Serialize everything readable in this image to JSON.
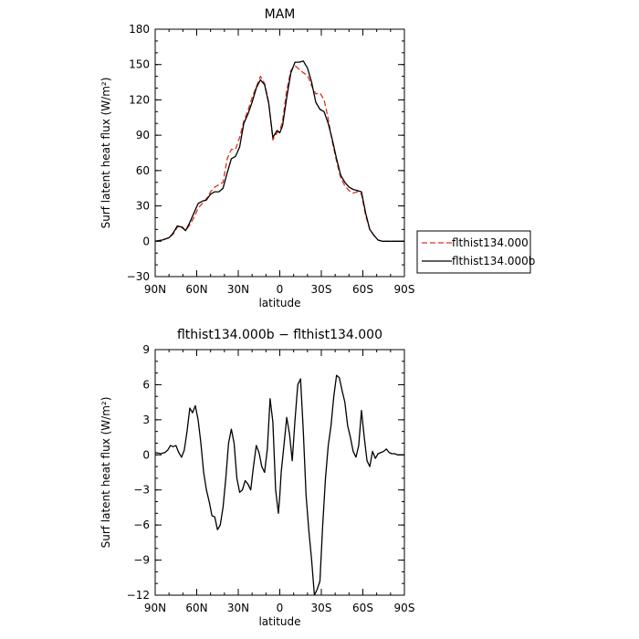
{
  "chart_data": [
    {
      "type": "line",
      "title": "MAM",
      "xlabel": "latitude",
      "ylabel": "Surf latent heat flux (W/m²)",
      "xlim": [
        90,
        -90
      ],
      "ylim": [
        -30,
        180
      ],
      "x_ticks": [
        90,
        60,
        30,
        0,
        -30,
        -60,
        -90
      ],
      "x_tick_labels": [
        "90N",
        "60N",
        "30N",
        "0",
        "30S",
        "60S",
        "90S"
      ],
      "y_ticks": [
        -30,
        0,
        30,
        60,
        90,
        120,
        150,
        180
      ],
      "y_tick_labels": [
        "−30",
        "0",
        "30",
        "60",
        "90",
        "120",
        "150",
        "180"
      ],
      "legend_position": "right",
      "series": [
        {
          "name": "flthist134.000",
          "color": "#e0301e",
          "dash": "dashed",
          "x": [
            90,
            85,
            80,
            77,
            74,
            71,
            68,
            65,
            62,
            59,
            56,
            53,
            50,
            47,
            44,
            41,
            38,
            35,
            32,
            29,
            26,
            23,
            20,
            17,
            14,
            11,
            8,
            5,
            2,
            0,
            -2,
            -5,
            -8,
            -11,
            -14,
            -17,
            -20,
            -23,
            -26,
            -29,
            -32,
            -35,
            -38,
            -41,
            -44,
            -47,
            -50,
            -53,
            -56,
            -59,
            -62,
            -65,
            -68,
            -71,
            -74,
            -77,
            -80,
            -85,
            -90
          ],
          "y": [
            0,
            1,
            3,
            6,
            12,
            13,
            9,
            14,
            20,
            28,
            32,
            36,
            42,
            46,
            48,
            50,
            70,
            78,
            78,
            88,
            102,
            111,
            122,
            131,
            140,
            134,
            118,
            86,
            92,
            94,
            102,
            128,
            145,
            149,
            146,
            143,
            141,
            132,
            125,
            126,
            120,
            104,
            84,
            68,
            54,
            47,
            43,
            41,
            42,
            40,
            22,
            10,
            5,
            1,
            0,
            0,
            0,
            0,
            0
          ]
        },
        {
          "name": "flthist134.000b",
          "color": "#000000",
          "dash": "solid",
          "x": [
            90,
            85,
            80,
            77,
            74,
            71,
            68,
            65,
            62,
            59,
            56,
            53,
            50,
            47,
            44,
            41,
            38,
            35,
            32,
            29,
            26,
            23,
            20,
            17,
            14,
            11,
            8,
            5,
            2,
            0,
            -2,
            -5,
            -8,
            -11,
            -14,
            -17,
            -20,
            -23,
            -26,
            -29,
            -32,
            -35,
            -38,
            -41,
            -44,
            -47,
            -50,
            -53,
            -56,
            -59,
            -62,
            -65,
            -68,
            -71,
            -74,
            -77,
            -80,
            -85,
            -90
          ],
          "y": [
            0,
            1,
            3,
            7,
            13,
            12,
            9,
            16,
            24,
            32,
            34,
            35,
            40,
            42,
            42,
            45,
            58,
            70,
            72,
            80,
            100,
            108,
            118,
            130,
            137,
            133,
            117,
            88,
            94,
            92,
            98,
            122,
            143,
            152,
            152,
            153,
            147,
            135,
            118,
            112,
            110,
            100,
            86,
            70,
            56,
            50,
            46,
            44,
            43,
            42,
            24,
            10,
            5,
            1,
            0,
            0,
            0,
            0,
            0
          ]
        }
      ]
    },
    {
      "type": "line",
      "title": "flthist134.000b − flthist134.000",
      "xlabel": "latitude",
      "ylabel": "Surf latent heat flux (W/m²)",
      "xlim": [
        90,
        -90
      ],
      "ylim": [
        -12,
        9
      ],
      "x_ticks": [
        90,
        60,
        30,
        0,
        -30,
        -60,
        -90
      ],
      "x_tick_labels": [
        "90N",
        "60N",
        "30N",
        "0",
        "30S",
        "60S",
        "90S"
      ],
      "y_ticks": [
        -12,
        -9,
        -6,
        -3,
        0,
        3,
        6,
        9
      ],
      "y_tick_labels": [
        "−12",
        "−9",
        "−6",
        "−3",
        "0",
        "3",
        "6",
        "9"
      ],
      "series": [
        {
          "color": "#000000",
          "dash": "solid",
          "x": [
            90,
            86,
            83,
            81,
            79,
            77,
            75,
            73,
            71,
            69,
            67,
            65,
            63,
            61,
            59,
            57,
            55,
            53,
            51,
            49,
            47,
            45,
            43,
            41,
            39,
            37,
            35,
            33,
            31,
            29,
            27,
            25,
            23,
            21,
            19,
            17,
            15,
            13,
            11,
            9,
            7,
            5,
            3,
            1,
            0,
            -1,
            -3,
            -5,
            -7,
            -9,
            -11,
            -13,
            -15,
            -17,
            -19,
            -21,
            -23,
            -25,
            -27,
            -29,
            -31,
            -33,
            -35,
            -37,
            -39,
            -41,
            -43,
            -45,
            -47,
            -49,
            -51,
            -53,
            -55,
            -57,
            -59,
            -61,
            -63,
            -65,
            -67,
            -69,
            -71,
            -73,
            -75,
            -77,
            -79,
            -81,
            -83,
            -85,
            -87,
            -90
          ],
          "y": [
            0.2,
            0.1,
            0.2,
            0.4,
            0.8,
            0.7,
            0.8,
            0.2,
            -0.2,
            0.4,
            2.0,
            4.0,
            3.6,
            4.2,
            3.0,
            1.0,
            -1.5,
            -3.0,
            -4.0,
            -5.2,
            -5.3,
            -6.4,
            -6.0,
            -4.5,
            -2.0,
            1.0,
            2.2,
            1.0,
            -2.0,
            -3.2,
            -3.0,
            -2.2,
            -2.5,
            -3.0,
            -1.0,
            0.8,
            0.2,
            -1.0,
            -1.5,
            0.5,
            4.8,
            2.8,
            -3.0,
            -5.0,
            -3.5,
            -1.5,
            0.8,
            3.2,
            1.8,
            -0.5,
            3.0,
            6.0,
            6.5,
            2.0,
            -3.5,
            -6.5,
            -9.0,
            -12.0,
            -11.5,
            -10.8,
            -6.0,
            -2.0,
            0.8,
            2.5,
            5.0,
            6.8,
            6.6,
            5.5,
            4.5,
            2.5,
            1.5,
            0.3,
            -0.2,
            0.8,
            3.8,
            1.5,
            -0.5,
            -1.0,
            0.3,
            -0.3,
            0.1,
            0.2,
            0.3,
            0.5,
            0.2,
            0.1,
            0.1,
            0.0,
            0.0,
            0.0
          ]
        }
      ]
    }
  ]
}
